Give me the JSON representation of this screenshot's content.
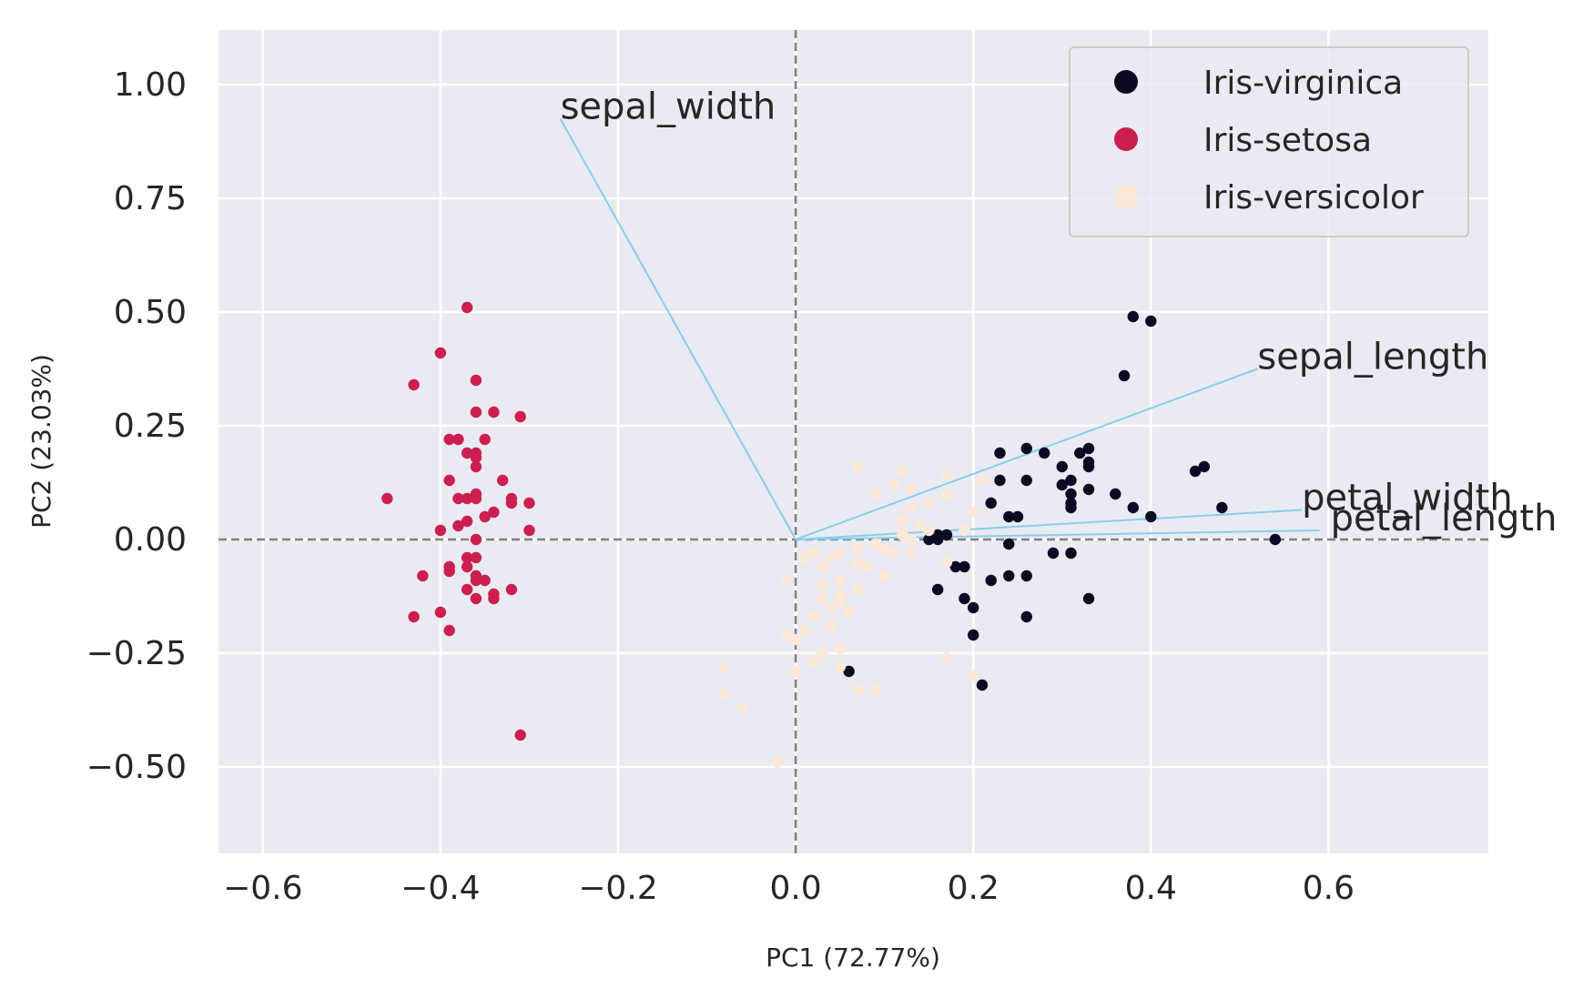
{
  "chart_data": {
    "type": "scatter",
    "title": "",
    "xlabel": "PC1 (72.77%)",
    "ylabel": "PC2 (23.03%)",
    "xlim": [
      -0.65,
      0.78
    ],
    "ylim": [
      -0.69,
      1.12
    ],
    "xticks": [
      -0.6,
      -0.4,
      -0.2,
      0.0,
      0.2,
      0.4,
      0.6
    ],
    "yticks": [
      -0.5,
      -0.25,
      0.0,
      0.25,
      0.5,
      0.75,
      1.0
    ],
    "xtick_labels": [
      "−0.6",
      "−0.4",
      "−0.2",
      "0.0",
      "0.2",
      "0.4",
      "0.6"
    ],
    "ytick_labels": [
      "−0.50",
      "−0.25",
      "0.00",
      "0.25",
      "0.50",
      "0.75",
      "1.00"
    ],
    "grid": true,
    "background": "#eaeaf2",
    "reference_lines": {
      "x": 0.0,
      "y": 0.0,
      "style": "dashed",
      "color": "#808080"
    },
    "legend_position": "top-right",
    "series": [
      {
        "name": "Iris-virginica",
        "color": "#0a0a23",
        "points": [
          [
            0.38,
            0.49
          ],
          [
            0.4,
            0.48
          ],
          [
            0.37,
            0.36
          ],
          [
            0.26,
            0.2
          ],
          [
            0.23,
            0.19
          ],
          [
            0.28,
            0.19
          ],
          [
            0.33,
            0.2
          ],
          [
            0.32,
            0.19
          ],
          [
            0.33,
            0.17
          ],
          [
            0.3,
            0.16
          ],
          [
            0.33,
            0.16
          ],
          [
            0.46,
            0.16
          ],
          [
            0.45,
            0.15
          ],
          [
            0.23,
            0.13
          ],
          [
            0.26,
            0.13
          ],
          [
            0.31,
            0.13
          ],
          [
            0.3,
            0.12
          ],
          [
            0.33,
            0.11
          ],
          [
            0.36,
            0.1
          ],
          [
            0.31,
            0.1
          ],
          [
            0.22,
            0.08
          ],
          [
            0.31,
            0.08
          ],
          [
            0.38,
            0.07
          ],
          [
            0.48,
            0.07
          ],
          [
            0.31,
            0.07
          ],
          [
            0.24,
            0.05
          ],
          [
            0.25,
            0.05
          ],
          [
            0.4,
            0.05
          ],
          [
            0.17,
            0.01
          ],
          [
            0.16,
            0.01
          ],
          [
            0.15,
            0.0
          ],
          [
            0.16,
            -0.0
          ],
          [
            0.54,
            0.0
          ],
          [
            0.24,
            -0.01
          ],
          [
            0.29,
            -0.03
          ],
          [
            0.31,
            -0.03
          ],
          [
            0.18,
            -0.06
          ],
          [
            0.19,
            -0.06
          ],
          [
            0.24,
            -0.08
          ],
          [
            0.26,
            -0.08
          ],
          [
            0.22,
            -0.09
          ],
          [
            0.16,
            -0.11
          ],
          [
            0.19,
            -0.13
          ],
          [
            0.33,
            -0.13
          ],
          [
            0.2,
            -0.15
          ],
          [
            0.26,
            -0.17
          ],
          [
            0.2,
            -0.21
          ],
          [
            0.06,
            -0.29
          ],
          [
            0.21,
            -0.32
          ]
        ]
      },
      {
        "name": "Iris-setosa",
        "color": "#cc1f4f",
        "points": [
          [
            -0.37,
            0.51
          ],
          [
            -0.4,
            0.41
          ],
          [
            -0.43,
            0.34
          ],
          [
            -0.36,
            0.35
          ],
          [
            -0.36,
            0.28
          ],
          [
            -0.34,
            0.28
          ],
          [
            -0.31,
            0.27
          ],
          [
            -0.39,
            0.22
          ],
          [
            -0.38,
            0.22
          ],
          [
            -0.35,
            0.22
          ],
          [
            -0.36,
            0.19
          ],
          [
            -0.37,
            0.19
          ],
          [
            -0.36,
            0.18
          ],
          [
            -0.36,
            0.16
          ],
          [
            -0.39,
            0.13
          ],
          [
            -0.33,
            0.13
          ],
          [
            -0.36,
            0.1
          ],
          [
            -0.37,
            0.09
          ],
          [
            -0.36,
            0.09
          ],
          [
            -0.46,
            0.09
          ],
          [
            -0.32,
            0.09
          ],
          [
            -0.3,
            0.08
          ],
          [
            -0.32,
            0.08
          ],
          [
            -0.38,
            0.09
          ],
          [
            -0.34,
            0.06
          ],
          [
            -0.35,
            0.05
          ],
          [
            -0.37,
            0.04
          ],
          [
            -0.38,
            0.03
          ],
          [
            -0.4,
            0.02
          ],
          [
            -0.3,
            0.02
          ],
          [
            -0.36,
            0.0
          ],
          [
            -0.37,
            -0.04
          ],
          [
            -0.36,
            -0.04
          ],
          [
            -0.39,
            -0.06
          ],
          [
            -0.37,
            -0.06
          ],
          [
            -0.39,
            -0.07
          ],
          [
            -0.36,
            -0.08
          ],
          [
            -0.42,
            -0.08
          ],
          [
            -0.36,
            -0.09
          ],
          [
            -0.35,
            -0.09
          ],
          [
            -0.37,
            -0.11
          ],
          [
            -0.32,
            -0.11
          ],
          [
            -0.34,
            -0.12
          ],
          [
            -0.34,
            -0.13
          ],
          [
            -0.36,
            -0.13
          ],
          [
            -0.4,
            -0.16
          ],
          [
            -0.43,
            -0.17
          ],
          [
            -0.39,
            -0.2
          ],
          [
            -0.31,
            -0.43
          ]
        ]
      },
      {
        "name": "Iris-versicolor",
        "color": "#fde9da",
        "points": [
          [
            0.07,
            0.16
          ],
          [
            0.12,
            0.15
          ],
          [
            0.17,
            0.14
          ],
          [
            0.21,
            0.13
          ],
          [
            0.11,
            0.12
          ],
          [
            0.13,
            0.11
          ],
          [
            0.09,
            0.1
          ],
          [
            0.17,
            0.1
          ],
          [
            0.15,
            0.08
          ],
          [
            0.13,
            0.07
          ],
          [
            0.2,
            0.06
          ],
          [
            0.12,
            0.04
          ],
          [
            0.14,
            0.03
          ],
          [
            0.19,
            0.02
          ],
          [
            0.15,
            0.02
          ],
          [
            0.12,
            0.01
          ],
          [
            0.13,
            0.0
          ],
          [
            0.09,
            -0.01
          ],
          [
            0.1,
            -0.02
          ],
          [
            0.07,
            -0.02
          ],
          [
            0.11,
            -0.03
          ],
          [
            0.13,
            -0.03
          ],
          [
            0.05,
            -0.03
          ],
          [
            0.02,
            -0.03
          ],
          [
            0.01,
            -0.04
          ],
          [
            0.04,
            -0.04
          ],
          [
            0.07,
            -0.05
          ],
          [
            0.17,
            -0.05
          ],
          [
            0.03,
            -0.06
          ],
          [
            0.08,
            -0.06
          ],
          [
            0.1,
            -0.08
          ],
          [
            0.05,
            -0.09
          ],
          [
            -0.01,
            -0.09
          ],
          [
            0.03,
            -0.1
          ],
          [
            0.07,
            -0.11
          ],
          [
            0.05,
            -0.12
          ],
          [
            0.03,
            -0.13
          ],
          [
            0.05,
            -0.14
          ],
          [
            0.04,
            -0.15
          ],
          [
            0.06,
            -0.16
          ],
          [
            0.02,
            -0.17
          ],
          [
            0.04,
            -0.19
          ],
          [
            0.01,
            -0.2
          ],
          [
            -0.01,
            -0.21
          ],
          [
            0.0,
            -0.22
          ],
          [
            0.05,
            -0.24
          ],
          [
            0.03,
            -0.25
          ],
          [
            0.17,
            -0.26
          ],
          [
            0.02,
            -0.27
          ],
          [
            0.05,
            -0.28
          ],
          [
            -0.08,
            -0.28
          ],
          [
            0.0,
            -0.29
          ],
          [
            0.2,
            -0.3
          ],
          [
            0.09,
            -0.33
          ],
          [
            0.07,
            -0.33
          ],
          [
            -0.08,
            -0.34
          ],
          [
            -0.06,
            -0.37
          ],
          [
            -0.02,
            -0.49
          ]
        ]
      }
    ],
    "vectors": [
      {
        "name": "sepal_width",
        "x": -0.265,
        "y": 0.925
      },
      {
        "name": "sepal_length",
        "x": 0.52,
        "y": 0.375
      },
      {
        "name": "petal_width",
        "x": 0.57,
        "y": 0.065
      },
      {
        "name": "petal_length",
        "x": 0.59,
        "y": 0.02
      }
    ],
    "vector_color": "#87ceeb"
  }
}
